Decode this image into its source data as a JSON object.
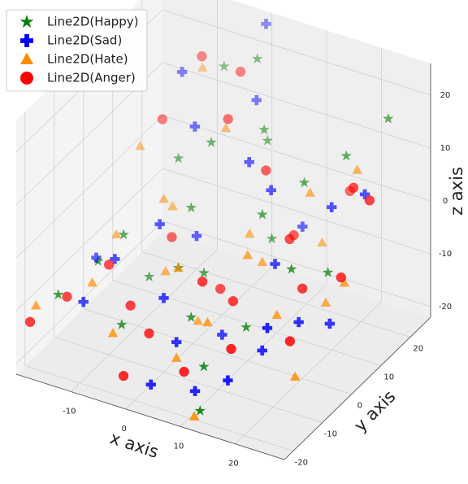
{
  "chart_data": {
    "type": "scatter3d",
    "xlabel": "x axis",
    "ylabel": "y axis",
    "zlabel": "z axis",
    "xlim": [
      -20,
      29
    ],
    "ylim": [
      -23,
      27
    ],
    "zlim": [
      -22,
      26
    ],
    "xticks": [
      -10,
      0,
      10,
      20
    ],
    "yticks": [
      -20,
      -10,
      0,
      10,
      20
    ],
    "zticks": [
      -20,
      -10,
      0,
      10,
      20
    ],
    "grid": true,
    "legend": "upper left",
    "depthshade": true,
    "series": [
      {
        "name": "Line2D(Happy)",
        "color": "#008000",
        "marker": "star",
        "x": [
          -5,
          0,
          5,
          -8,
          -3,
          10,
          15,
          20,
          25,
          -10,
          -12,
          0,
          5,
          -5,
          10,
          2,
          8,
          -15,
          12,
          18,
          -2,
          4,
          22,
          -8,
          14
        ],
        "y": [
          20,
          22,
          15,
          10,
          5,
          5,
          10,
          15,
          20,
          -5,
          -10,
          -5,
          -10,
          -15,
          -15,
          0,
          12,
          -18,
          -20,
          0,
          10,
          18,
          5,
          0,
          -8
        ],
        "z": [
          18,
          20,
          12,
          5,
          0,
          3,
          8,
          12,
          18,
          -2,
          -5,
          -5,
          -10,
          -12,
          -15,
          -8,
          -6,
          -8,
          -20,
          -2,
          10,
          8,
          -4,
          -12,
          -10
        ]
      },
      {
        "name": "Line2D(Sad)",
        "color": "#0000ff",
        "marker": "plus",
        "x": [
          0,
          -10,
          2,
          -5,
          10,
          20,
          25,
          15,
          22,
          -10,
          -5,
          0,
          5,
          10,
          -12,
          3,
          18,
          8,
          -2,
          12,
          25,
          16,
          -15,
          6,
          20
        ],
        "y": [
          25,
          15,
          18,
          10,
          8,
          10,
          12,
          0,
          -5,
          -8,
          -2,
          -10,
          -15,
          -18,
          -15,
          -20,
          -10,
          -5,
          5,
          15,
          0,
          -18,
          -5,
          8,
          -12
        ],
        "z": [
          25,
          18,
          15,
          12,
          6,
          5,
          8,
          -2,
          -8,
          -5,
          0,
          -8,
          -12,
          -18,
          -10,
          -18,
          -12,
          -15,
          -5,
          -4,
          -10,
          -14,
          -8,
          10,
          -6
        ]
      },
      {
        "name": "Line2D(Hate)",
        "color": "#ff8c00",
        "marker": "triangle",
        "x": [
          -10,
          -15,
          -8,
          -2,
          5,
          15,
          25,
          22,
          10,
          0,
          -12,
          -5,
          5,
          12,
          -18,
          18,
          8,
          20,
          -5,
          2,
          14,
          -8,
          24,
          10,
          -14
        ],
        "y": [
          22,
          10,
          5,
          15,
          10,
          12,
          5,
          15,
          0,
          -5,
          -12,
          -18,
          -15,
          -22,
          -20,
          -5,
          -10,
          8,
          0,
          -2,
          18,
          8,
          -10,
          5,
          0
        ],
        "z": [
          15,
          5,
          0,
          10,
          -5,
          5,
          -5,
          10,
          -2,
          -5,
          -8,
          -12,
          -15,
          -20,
          -10,
          -8,
          -10,
          -12,
          -10,
          -16,
          -8,
          -3,
          -15,
          -6,
          -6
        ]
      },
      {
        "name": "Line2D(Anger)",
        "color": "#ff0000",
        "marker": "circle",
        "x": [
          -8,
          -2,
          -12,
          0,
          8,
          24,
          28,
          15,
          20,
          10,
          -10,
          -5,
          0,
          8,
          -2,
          15,
          5,
          -15,
          22,
          12,
          -18,
          18,
          6,
          26,
          -6
        ],
        "y": [
          18,
          20,
          12,
          12,
          10,
          10,
          8,
          5,
          0,
          -5,
          -10,
          -12,
          -15,
          -18,
          -20,
          -15,
          0,
          -15,
          -8,
          12,
          -22,
          20,
          -8,
          2,
          4
        ],
        "z": [
          20,
          18,
          10,
          14,
          8,
          10,
          10,
          0,
          -5,
          -8,
          -5,
          -10,
          -12,
          -15,
          -18,
          -10,
          -10,
          -10,
          -10,
          -4,
          -12,
          2,
          -4,
          -2,
          -6
        ]
      }
    ]
  }
}
